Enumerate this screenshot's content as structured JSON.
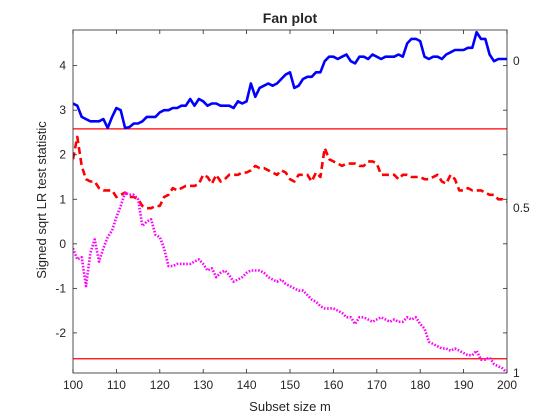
{
  "chart_data": {
    "type": "line",
    "title": "Fan plot",
    "xlabel": "Subset size m",
    "ylabel": "Signed sqrt LR test statistic",
    "xlim": [
      100,
      200
    ],
    "ylim": [
      -2.9,
      4.8
    ],
    "xticks": [
      100,
      110,
      120,
      130,
      140,
      150,
      160,
      170,
      180,
      190,
      200
    ],
    "yticks": [
      -2,
      -1,
      0,
      1,
      2,
      3,
      4
    ],
    "right_axis_labels": [
      {
        "y": 4.1,
        "label": "0"
      },
      {
        "y": 0.8,
        "label": "0.5"
      },
      {
        "y": -2.9,
        "label": "1"
      }
    ],
    "reference_lines": [
      {
        "y": 2.58,
        "color": "#ff0000"
      },
      {
        "y": -2.58,
        "color": "#ff0000"
      }
    ],
    "grid": false,
    "series": [
      {
        "color": "#0000ff",
        "style": "solid",
        "x": [
          100,
          101,
          102,
          103,
          104,
          105,
          106,
          107,
          108,
          109,
          110,
          111,
          112,
          113,
          114,
          115,
          116,
          117,
          118,
          119,
          120,
          121,
          122,
          123,
          124,
          125,
          126,
          127,
          128,
          129,
          130,
          131,
          132,
          133,
          134,
          135,
          136,
          137,
          138,
          139,
          140,
          141,
          142,
          143,
          144,
          145,
          146,
          147,
          148,
          149,
          150,
          151,
          152,
          153,
          154,
          155,
          156,
          157,
          158,
          159,
          160,
          161,
          162,
          163,
          164,
          165,
          166,
          167,
          168,
          169,
          170,
          171,
          172,
          173,
          174,
          175,
          176,
          177,
          178,
          179,
          180,
          181,
          182,
          183,
          184,
          185,
          186,
          187,
          188,
          189,
          190,
          191,
          192,
          193,
          194,
          195,
          196,
          197,
          198,
          199,
          200
        ],
        "y": [
          3.15,
          3.1,
          2.85,
          2.8,
          2.75,
          2.75,
          2.75,
          2.8,
          2.6,
          2.85,
          3.05,
          3.0,
          2.6,
          2.62,
          2.7,
          2.7,
          2.75,
          2.85,
          2.85,
          2.85,
          2.95,
          3.0,
          3.0,
          3.05,
          3.05,
          3.1,
          3.1,
          3.25,
          3.1,
          3.25,
          3.2,
          3.1,
          3.15,
          3.15,
          3.1,
          3.1,
          3.1,
          3.05,
          3.2,
          3.15,
          3.2,
          3.6,
          3.3,
          3.5,
          3.55,
          3.6,
          3.55,
          3.6,
          3.7,
          3.8,
          3.85,
          3.5,
          3.55,
          3.7,
          3.75,
          3.75,
          3.85,
          3.85,
          4.1,
          4.2,
          4.2,
          4.15,
          4.2,
          4.25,
          4.1,
          4.05,
          4.2,
          4.2,
          4.15,
          4.25,
          4.2,
          4.15,
          4.2,
          4.2,
          4.2,
          4.25,
          4.2,
          4.5,
          4.6,
          4.6,
          4.55,
          4.2,
          4.15,
          4.2,
          4.2,
          4.15,
          4.25,
          4.3,
          4.35,
          4.35,
          4.35,
          4.4,
          4.4,
          4.75,
          4.6,
          4.6,
          4.25,
          4.1,
          4.15,
          4.15,
          4.15
        ]
      },
      {
        "color": "#ff0000",
        "style": "dashed",
        "x": [
          100,
          101,
          102,
          103,
          104,
          105,
          106,
          107,
          108,
          109,
          110,
          111,
          112,
          113,
          114,
          115,
          116,
          117,
          118,
          119,
          120,
          121,
          122,
          123,
          124,
          125,
          126,
          127,
          128,
          129,
          130,
          131,
          132,
          133,
          134,
          135,
          136,
          137,
          138,
          139,
          140,
          141,
          142,
          143,
          144,
          145,
          146,
          147,
          148,
          149,
          150,
          151,
          152,
          153,
          154,
          155,
          156,
          157,
          158,
          159,
          160,
          161,
          162,
          163,
          164,
          165,
          166,
          167,
          168,
          169,
          170,
          171,
          172,
          173,
          174,
          175,
          176,
          177,
          178,
          179,
          180,
          181,
          182,
          183,
          184,
          185,
          186,
          187,
          188,
          189,
          190,
          191,
          192,
          193,
          194,
          195,
          196,
          197,
          198,
          199,
          200
        ],
        "y": [
          1.9,
          2.4,
          1.75,
          1.45,
          1.4,
          1.4,
          1.25,
          1.2,
          1.2,
          1.2,
          1.05,
          1.1,
          1.15,
          1.05,
          1.05,
          1.0,
          0.85,
          0.8,
          0.8,
          0.85,
          0.85,
          1.05,
          1.1,
          1.25,
          1.2,
          1.25,
          1.3,
          1.3,
          1.3,
          1.35,
          1.55,
          1.5,
          1.35,
          1.55,
          1.4,
          1.45,
          1.55,
          1.55,
          1.55,
          1.6,
          1.6,
          1.65,
          1.75,
          1.7,
          1.7,
          1.65,
          1.6,
          1.55,
          1.65,
          1.6,
          1.45,
          1.4,
          1.55,
          1.55,
          1.55,
          1.4,
          1.6,
          1.5,
          2.15,
          1.9,
          1.85,
          1.8,
          1.75,
          1.8,
          1.8,
          1.8,
          1.75,
          1.75,
          1.85,
          1.85,
          1.8,
          1.55,
          1.55,
          1.55,
          1.55,
          1.45,
          1.55,
          1.55,
          1.5,
          1.5,
          1.5,
          1.45,
          1.45,
          1.5,
          1.55,
          1.4,
          1.35,
          1.55,
          1.45,
          1.2,
          1.2,
          1.25,
          1.2,
          1.2,
          1.2,
          1.15,
          1.1,
          1.1,
          1.0,
          1.0,
          0.95
        ]
      },
      {
        "color": "#ff00ff",
        "style": "dotted",
        "x": [
          100,
          101,
          102,
          103,
          104,
          105,
          106,
          107,
          108,
          109,
          110,
          111,
          112,
          113,
          114,
          115,
          116,
          117,
          118,
          119,
          120,
          121,
          122,
          123,
          124,
          125,
          126,
          127,
          128,
          129,
          130,
          131,
          132,
          133,
          134,
          135,
          136,
          137,
          138,
          139,
          140,
          141,
          142,
          143,
          144,
          145,
          146,
          147,
          148,
          149,
          150,
          151,
          152,
          153,
          154,
          155,
          156,
          157,
          158,
          159,
          160,
          161,
          162,
          163,
          164,
          165,
          166,
          167,
          168,
          169,
          170,
          171,
          172,
          173,
          174,
          175,
          176,
          177,
          178,
          179,
          180,
          181,
          182,
          183,
          184,
          185,
          186,
          187,
          188,
          189,
          190,
          191,
          192,
          193,
          194,
          195,
          196,
          197,
          198,
          199,
          200
        ],
        "y": [
          -0.1,
          -0.35,
          -0.3,
          -0.95,
          -0.2,
          0.1,
          -0.4,
          -0.1,
          0.15,
          0.3,
          0.6,
          0.85,
          1.15,
          1.1,
          1.1,
          1.0,
          0.4,
          0.5,
          0.55,
          0.2,
          0.15,
          -0.1,
          -0.5,
          -0.5,
          -0.45,
          -0.45,
          -0.45,
          -0.45,
          -0.4,
          -0.35,
          -0.45,
          -0.6,
          -0.55,
          -0.75,
          -0.65,
          -0.6,
          -0.7,
          -0.85,
          -0.8,
          -0.75,
          -0.65,
          -0.6,
          -0.6,
          -0.6,
          -0.65,
          -0.75,
          -0.8,
          -0.85,
          -0.8,
          -0.9,
          -0.95,
          -1.0,
          -1.05,
          -1.05,
          -1.15,
          -1.25,
          -1.3,
          -1.4,
          -1.45,
          -1.45,
          -1.45,
          -1.5,
          -1.55,
          -1.65,
          -1.65,
          -1.8,
          -1.65,
          -1.65,
          -1.7,
          -1.75,
          -1.7,
          -1.65,
          -1.7,
          -1.75,
          -1.7,
          -1.75,
          -1.75,
          -1.65,
          -1.7,
          -1.65,
          -1.8,
          -1.9,
          -2.2,
          -2.25,
          -2.3,
          -2.35,
          -2.35,
          -2.4,
          -2.35,
          -2.4,
          -2.45,
          -2.5,
          -2.5,
          -2.4,
          -2.6,
          -2.6,
          -2.55,
          -2.7,
          -2.75,
          -2.8,
          -2.9
        ]
      }
    ]
  }
}
